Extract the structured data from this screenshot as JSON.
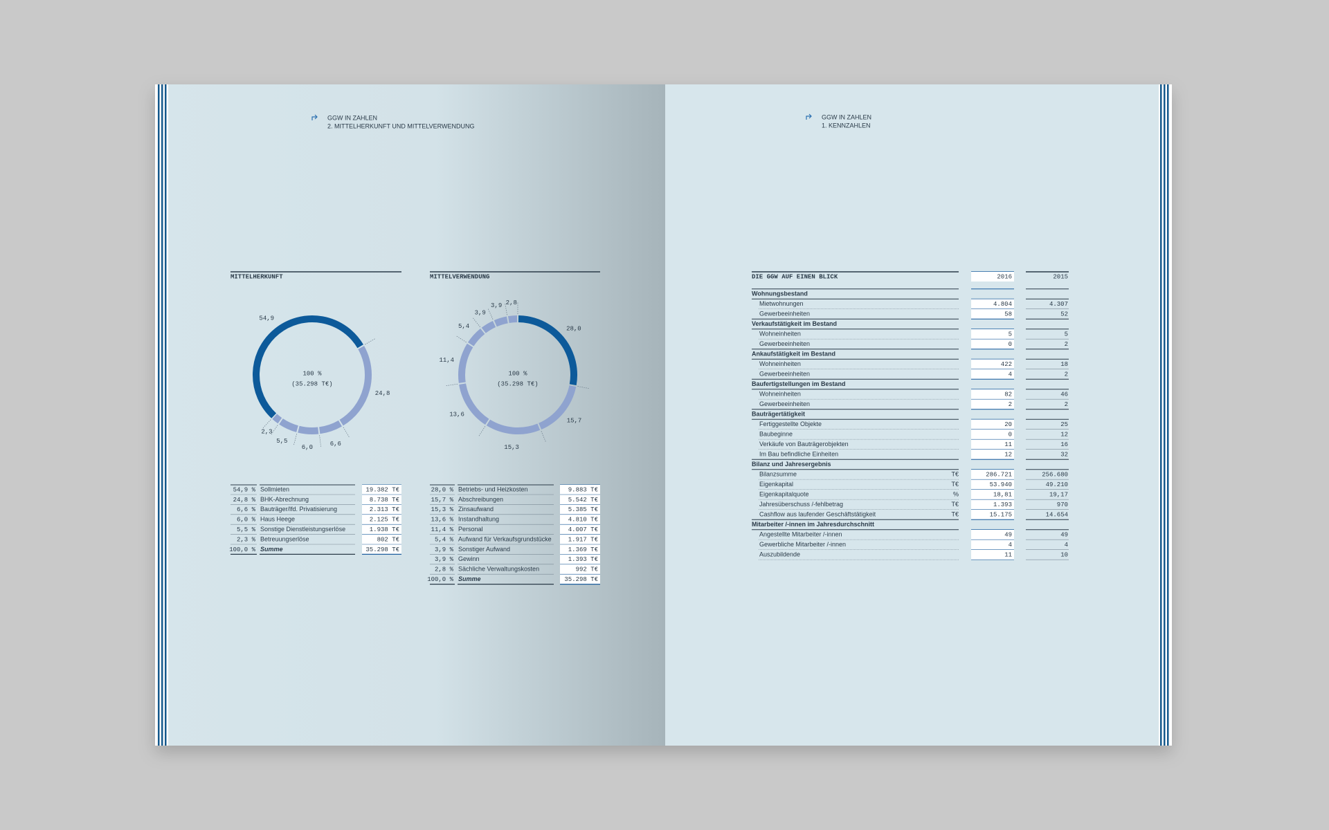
{
  "left_page": {
    "header": {
      "section": "GGW IN ZAHLEN",
      "subtitle": "2. MITTELHERKUNFT UND MITTELVERWENDUNG"
    },
    "charts": [
      {
        "title": "MITTELHERKUNFT",
        "center_label": "100 %",
        "center_sublabel": "(35.298 T€)",
        "segments": [
          {
            "value": 54.9,
            "label": "54,9",
            "color": "#0d5a9a"
          },
          {
            "value": 24.8,
            "label": "24,8",
            "color": "#8fa3cf"
          },
          {
            "value": 6.6,
            "label": "6,6",
            "color": "#8fa3cf"
          },
          {
            "value": 6.0,
            "label": "6,0",
            "color": "#8fa3cf"
          },
          {
            "value": 5.5,
            "label": "5,5",
            "color": "#8fa3cf"
          },
          {
            "value": 2.3,
            "label": "2,3",
            "color": "#8fa3cf"
          }
        ],
        "table": {
          "rows": [
            [
              "54,9 %",
              "Sollmieten",
              "19.382 T€"
            ],
            [
              "24,8 %",
              "BHK-Abrechnung",
              "8.738 T€"
            ],
            [
              "6,6 %",
              "Bauträger/lfd. Privatisierung",
              "2.313 T€"
            ],
            [
              "6,0 %",
              "Haus Heege",
              "2.125 T€"
            ],
            [
              "5,5 %",
              "Sonstige Dienstleistungserlöse",
              "1.938 T€"
            ],
            [
              "2,3 %",
              "Betreuungserlöse",
              "802 T€"
            ]
          ],
          "total": [
            "100,0 %",
            "Summe",
            "35.298 T€"
          ]
        }
      },
      {
        "title": "MITTELVERWENDUNG",
        "center_label": "100 %",
        "center_sublabel": "(35.298 T€)",
        "segments": [
          {
            "value": 28.0,
            "label": "28,0",
            "color": "#0d5a9a"
          },
          {
            "value": 15.7,
            "label": "15,7",
            "color": "#8fa3cf"
          },
          {
            "value": 15.3,
            "label": "15,3",
            "color": "#8fa3cf"
          },
          {
            "value": 13.6,
            "label": "13,6",
            "color": "#8fa3cf"
          },
          {
            "value": 11.4,
            "label": "11,4",
            "color": "#8fa3cf"
          },
          {
            "value": 5.4,
            "label": "5,4",
            "color": "#8fa3cf"
          },
          {
            "value": 3.9,
            "label": "3,9",
            "color": "#8fa3cf"
          },
          {
            "value": 3.9,
            "label": "3,9",
            "color": "#8fa3cf"
          },
          {
            "value": 2.8,
            "label": "2,8",
            "color": "#8fa3cf"
          }
        ],
        "table": {
          "rows": [
            [
              "28,0 %",
              "Betriebs- und Heizkosten",
              "9.883 T€"
            ],
            [
              "15,7 %",
              "Abschreibungen",
              "5.542 T€"
            ],
            [
              "15,3 %",
              "Zinsaufwand",
              "5.385 T€"
            ],
            [
              "13,6 %",
              "Instandhaltung",
              "4.810 T€"
            ],
            [
              "11,4 %",
              "Personal",
              "4.007 T€"
            ],
            [
              "5,4 %",
              "Aufwand für Verkaufsgrundstücke",
              "1.917 T€"
            ],
            [
              "3,9 %",
              "Sonstiger Aufwand",
              "1.369 T€"
            ],
            [
              "3,9 %",
              "Gewinn",
              "1.393 T€"
            ],
            [
              "2,8 %",
              "Sächliche Verwaltungskosten",
              "992 T€"
            ]
          ],
          "total": [
            "100,0 %",
            "Summe",
            "35.298 T€"
          ]
        }
      }
    ]
  },
  "right_page": {
    "header": {
      "section": "GGW IN ZAHLEN",
      "subtitle": "1. KENNZAHLEN"
    },
    "table": {
      "title": "DIE GGW AUF EINEN BLICK",
      "years": [
        "2016",
        "2015"
      ],
      "rows": [
        {
          "section": "Wohnungsbestand"
        },
        {
          "label": "Mietwohnungen",
          "values": [
            "4.804",
            "4.307"
          ]
        },
        {
          "label": "Gewerbeeinheiten",
          "values": [
            "58",
            "52"
          ]
        },
        {
          "section": "Verkaufstätigkeit im Bestand"
        },
        {
          "label": "Wohneinheiten",
          "values": [
            "5",
            "5"
          ]
        },
        {
          "label": "Gewerbeeinheiten",
          "values": [
            "0",
            "2"
          ]
        },
        {
          "section": "Ankaufstätigkeit im Bestand"
        },
        {
          "label": "Wohneinheiten",
          "values": [
            "422",
            "18"
          ]
        },
        {
          "label": "Gewerbeeinheiten",
          "values": [
            "4",
            "2"
          ]
        },
        {
          "section": "Baufertigstellungen im Bestand"
        },
        {
          "label": "Wohneinheiten",
          "values": [
            "82",
            "46"
          ]
        },
        {
          "label": "Gewerbeeinheiten",
          "values": [
            "2",
            "2"
          ]
        },
        {
          "section": "Bauträgertätigkeit"
        },
        {
          "label": "Fertiggestellte Objekte",
          "values": [
            "20",
            "25"
          ]
        },
        {
          "label": "Baubeginne",
          "values": [
            "0",
            "12"
          ]
        },
        {
          "label": "Verkäufe von Bauträgerobjekten",
          "values": [
            "11",
            "16"
          ]
        },
        {
          "label": "Im Bau befindliche Einheiten",
          "values": [
            "12",
            "32"
          ]
        },
        {
          "section": "Bilanz und Jahresergebnis"
        },
        {
          "label": "Bilanzsumme",
          "unit": "T€",
          "values": [
            "286.721",
            "256.680"
          ]
        },
        {
          "label": "Eigenkapital",
          "unit": "T€",
          "values": [
            "53.940",
            "49.210"
          ]
        },
        {
          "label": "Eigenkapitalquote",
          "unit": "%",
          "values": [
            "18,81",
            "19,17"
          ]
        },
        {
          "label": "Jahresüberschuss /-fehlbetrag",
          "unit": "T€",
          "values": [
            "1.393",
            "970"
          ]
        },
        {
          "label": "Cashflow aus laufender Geschäftstätigkeit",
          "unit": "T€",
          "values": [
            "15.175",
            "14.654"
          ]
        },
        {
          "section": "Mitarbeiter /-innen im Jahresdurchschnitt"
        },
        {
          "label": "Angestellte Mitarbeiter /-innen",
          "values": [
            "49",
            "49"
          ]
        },
        {
          "label": "Gewerbliche Mitarbeiter /-innen",
          "values": [
            "4",
            "4"
          ]
        },
        {
          "label": "Auszubildende",
          "values": [
            "11",
            "10"
          ]
        }
      ]
    }
  }
}
